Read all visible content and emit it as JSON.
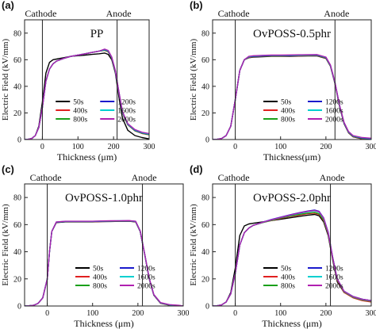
{
  "chart_data": [
    {
      "type": "line",
      "panel_label": "(a)",
      "title": "PP",
      "xlabel": "Thickness (μm)",
      "ylabel": "Electric Field (kV/mm)",
      "xlim": [
        -50,
        300
      ],
      "ylim": [
        0,
        90
      ],
      "xticks": [
        "0",
        "100",
        "200",
        "300"
      ],
      "yticks": [
        "0",
        "20",
        "40",
        "60",
        "80"
      ],
      "markers": [
        {
          "label": "Cathode",
          "x": 0
        },
        {
          "label": "Anode",
          "x": 210
        }
      ],
      "legend": "lower-center",
      "x": [
        -50,
        -40,
        -30,
        -20,
        -10,
        0,
        10,
        20,
        30,
        40,
        60,
        80,
        100,
        120,
        140,
        160,
        175,
        185,
        195,
        205,
        215,
        225,
        240,
        260,
        280,
        300
      ],
      "series": [
        {
          "name": "50s",
          "color": "#000000",
          "values": [
            0,
            0.2,
            0.8,
            3,
            10,
            28,
            50,
            58,
            60,
            60.5,
            61.5,
            62.5,
            63,
            63.5,
            64,
            64.5,
            65,
            64,
            60,
            50,
            32,
            16,
            7,
            3,
            1.5,
            0.5
          ]
        },
        {
          "name": "400s",
          "color": "#e02020",
          "values": [
            0,
            0.2,
            0.8,
            3,
            9,
            24,
            44,
            53,
            57,
            59,
            61,
            62.5,
            63.5,
            64.5,
            65.5,
            66.5,
            67,
            66,
            61,
            51,
            35,
            20,
            11,
            6.5,
            4.5,
            3.5
          ]
        },
        {
          "name": "800s",
          "color": "#1aa01a",
          "values": [
            0,
            0.2,
            0.8,
            3,
            9,
            24,
            44,
            53,
            57,
            59,
            61,
            62.5,
            63.5,
            64.5,
            65.5,
            66.5,
            67.2,
            66.2,
            61.2,
            51.2,
            35.2,
            20.2,
            11.2,
            6.7,
            4.7,
            3.7
          ]
        },
        {
          "name": "1200s",
          "color": "#1a1acc",
          "values": [
            0,
            0.2,
            0.8,
            3,
            9,
            24,
            44,
            53,
            57,
            59,
            61,
            62.5,
            63.5,
            64.5,
            65.5,
            66.5,
            67.5,
            66.5,
            61.5,
            51.5,
            35.5,
            20.5,
            11.5,
            7,
            5,
            4
          ]
        },
        {
          "name": "1600s",
          "color": "#00d0d0",
          "values": [
            0,
            0.2,
            0.8,
            3,
            9,
            24,
            44,
            53,
            57,
            59,
            61,
            62.5,
            63.5,
            64.5,
            65.5,
            66.5,
            67.7,
            66.7,
            61.7,
            51.7,
            35.7,
            20.7,
            11.7,
            7.2,
            5.2,
            4.2
          ]
        },
        {
          "name": "2000s",
          "color": "#b020b0",
          "values": [
            0,
            0.2,
            0.8,
            3,
            9,
            24,
            44,
            53,
            57,
            59,
            61,
            62.5,
            63.5,
            64.5,
            65.5,
            66.5,
            68,
            67,
            62,
            52,
            36,
            21,
            12,
            7.5,
            5.5,
            4.5
          ]
        }
      ]
    },
    {
      "type": "line",
      "panel_label": "(b)",
      "title": "OvPOSS-0.5phr",
      "xlabel": "Thickness(μm)",
      "ylabel": "Electric Field (kV/mm)",
      "xlim": [
        -50,
        300
      ],
      "ylim": [
        0,
        90
      ],
      "xticks": [
        "0",
        "100",
        "200",
        "300"
      ],
      "yticks": [
        "0",
        "20",
        "40",
        "60",
        "80"
      ],
      "markers": [
        {
          "label": "Cathode",
          "x": 0
        },
        {
          "label": "Anode",
          "x": 220
        }
      ],
      "legend": "lower-center",
      "x": [
        -50,
        -40,
        -30,
        -20,
        -10,
        0,
        10,
        20,
        30,
        40,
        60,
        80,
        100,
        120,
        140,
        160,
        180,
        200,
        210,
        220,
        230,
        240,
        250,
        260,
        280,
        300
      ],
      "series": [
        {
          "name": "50s",
          "color": "#000000",
          "values": [
            0,
            0.2,
            0.8,
            3,
            10,
            30,
            52,
            60,
            61.5,
            62,
            62.3,
            62.5,
            62.5,
            62.6,
            62.7,
            62.8,
            62.9,
            61,
            55,
            42,
            25,
            12,
            5,
            2,
            0.5,
            0
          ]
        },
        {
          "name": "400s",
          "color": "#e02020",
          "values": [
            0,
            0.2,
            0.8,
            3,
            10,
            30,
            52,
            60,
            61.7,
            62.2,
            62.5,
            62.7,
            62.7,
            62.8,
            62.9,
            63,
            63.1,
            61.2,
            55.2,
            42.2,
            25.2,
            12.2,
            5.2,
            2.2,
            0.7,
            0.2
          ]
        },
        {
          "name": "800s",
          "color": "#1aa01a",
          "values": [
            0,
            0.2,
            0.8,
            3,
            10,
            30,
            52,
            60,
            61.9,
            62.4,
            62.7,
            62.9,
            62.9,
            63,
            63.1,
            63.2,
            63.3,
            61.4,
            55.4,
            42.4,
            25.4,
            12.4,
            5.4,
            2.4,
            0.9,
            0.4
          ]
        },
        {
          "name": "1200s",
          "color": "#1a1acc",
          "values": [
            0,
            0.2,
            0.8,
            3,
            10,
            30,
            52,
            60,
            62.1,
            62.6,
            62.9,
            63.1,
            63.1,
            63.2,
            63.3,
            63.4,
            63.5,
            61.6,
            55.6,
            42.6,
            25.6,
            12.6,
            5.6,
            2.6,
            1.1,
            0.6
          ]
        },
        {
          "name": "1600s",
          "color": "#00d0d0",
          "values": [
            0,
            0.2,
            0.8,
            3,
            10,
            30,
            52,
            60,
            62.3,
            62.8,
            63.1,
            63.3,
            63.3,
            63.4,
            63.5,
            63.6,
            63.7,
            61.8,
            55.8,
            42.8,
            25.8,
            12.8,
            5.8,
            2.8,
            1.3,
            0.8
          ]
        },
        {
          "name": "2000s",
          "color": "#b020b0",
          "values": [
            0,
            0.2,
            0.8,
            3,
            10,
            30,
            52,
            60,
            62.5,
            63,
            63.3,
            63.5,
            63.5,
            63.6,
            63.7,
            63.8,
            63.9,
            62,
            56,
            43,
            26,
            13,
            6,
            3,
            1.5,
            1
          ]
        }
      ]
    },
    {
      "type": "line",
      "panel_label": "(c)",
      "title": "OvPOSS-1.0phr",
      "xlabel": "Thickness (μm)",
      "ylabel": "Electric Field (kV/mm)",
      "xlim": [
        -50,
        300
      ],
      "ylim": [
        0,
        90
      ],
      "xticks": [
        "0",
        "100",
        "200",
        "300"
      ],
      "yticks": [
        "0",
        "20",
        "40",
        "60",
        "80"
      ],
      "markers": [
        {
          "label": "Cathode",
          "x": 0
        },
        {
          "label": "Anode",
          "x": 210
        }
      ],
      "legend": "lower-center",
      "x": [
        -50,
        -40,
        -30,
        -20,
        -10,
        0,
        5,
        10,
        20,
        40,
        60,
        80,
        100,
        120,
        140,
        160,
        180,
        195,
        205,
        215,
        225,
        235,
        250,
        270,
        290,
        300
      ],
      "series": [
        {
          "name": "50s",
          "color": "#000000",
          "values": [
            0,
            0.2,
            0.5,
            2,
            6,
            20,
            40,
            55,
            61.5,
            62,
            62,
            62,
            62,
            62.2,
            62.3,
            62.4,
            62.5,
            62,
            55,
            38,
            20,
            8,
            2,
            0.5,
            0,
            0
          ]
        },
        {
          "name": "400s",
          "color": "#e02020",
          "values": [
            0,
            0.2,
            0.5,
            2,
            6,
            20,
            40,
            55,
            61.6,
            62.1,
            62.1,
            62.1,
            62.1,
            62.3,
            62.4,
            62.5,
            62.6,
            62.1,
            55.1,
            38.1,
            20.1,
            8.1,
            2.1,
            0.6,
            0.1,
            0
          ]
        },
        {
          "name": "800s",
          "color": "#1aa01a",
          "values": [
            0,
            0.2,
            0.5,
            2,
            6,
            20,
            40,
            55,
            61.7,
            62.2,
            62.2,
            62.2,
            62.2,
            62.4,
            62.5,
            62.6,
            62.7,
            62.2,
            55.2,
            38.2,
            20.2,
            8.2,
            2.2,
            0.7,
            0.2,
            0
          ]
        },
        {
          "name": "1200s",
          "color": "#1a1acc",
          "values": [
            0,
            0.2,
            0.5,
            2,
            6,
            20,
            40,
            55,
            61.8,
            62.3,
            62.3,
            62.3,
            62.3,
            62.5,
            62.6,
            62.7,
            62.8,
            62.3,
            55.3,
            38.3,
            20.3,
            8.3,
            2.3,
            0.8,
            0.3,
            0
          ]
        },
        {
          "name": "1600s",
          "color": "#00d0d0",
          "values": [
            0,
            0.2,
            0.5,
            2,
            6,
            20,
            40,
            55,
            61.9,
            62.4,
            62.4,
            62.4,
            62.4,
            62.6,
            62.7,
            62.8,
            62.9,
            62.4,
            55.4,
            38.4,
            20.4,
            8.4,
            2.4,
            0.9,
            0.4,
            0
          ]
        },
        {
          "name": "2000s",
          "color": "#b020b0",
          "values": [
            0,
            0.2,
            0.5,
            2,
            6,
            20,
            40,
            55,
            62,
            62.5,
            62.5,
            62.5,
            62.5,
            62.7,
            62.8,
            62.9,
            63,
            62.5,
            55.5,
            38.5,
            20.5,
            8.5,
            2.5,
            1,
            0.5,
            0
          ]
        }
      ]
    },
    {
      "type": "line",
      "panel_label": "(d)",
      "title": "OvPOSS-2.0phr",
      "xlabel": "Thickness (μm)",
      "ylabel": "Electric Field (kV/mm)",
      "xlim": [
        -50,
        300
      ],
      "ylim": [
        0,
        90
      ],
      "xticks": [
        "0",
        "100",
        "200",
        "300"
      ],
      "yticks": [
        "0",
        "20",
        "40",
        "60",
        "80"
      ],
      "markers": [
        {
          "label": "Cathode",
          "x": 0
        },
        {
          "label": "Anode",
          "x": 210
        }
      ],
      "legend": "lower-center",
      "x": [
        -50,
        -40,
        -30,
        -20,
        -10,
        0,
        10,
        20,
        30,
        40,
        60,
        80,
        100,
        120,
        140,
        160,
        175,
        185,
        195,
        205,
        215,
        225,
        240,
        260,
        280,
        300
      ],
      "series": [
        {
          "name": "50s",
          "color": "#000000",
          "values": [
            0,
            0.2,
            0.8,
            3,
            10,
            28,
            52,
            59,
            60.5,
            61,
            62,
            63,
            64,
            65,
            66,
            67,
            67.5,
            66.5,
            62,
            52,
            34,
            18,
            10,
            7,
            5,
            4
          ]
        },
        {
          "name": "400s",
          "color": "#e02020",
          "values": [
            0,
            0.2,
            0.8,
            3,
            9,
            24,
            45,
            54,
            57.5,
            59.5,
            61.5,
            63,
            64.5,
            66,
            67,
            68,
            68.5,
            67.5,
            63,
            53,
            35,
            19,
            10,
            6,
            4,
            3
          ]
        },
        {
          "name": "800s",
          "color": "#1aa01a",
          "values": [
            0,
            0.2,
            0.8,
            3,
            9,
            24,
            45,
            54,
            57.5,
            59.5,
            61.5,
            63.2,
            64.8,
            66.3,
            67.5,
            68.5,
            69,
            68,
            63.5,
            53.5,
            35.5,
            19.5,
            10.5,
            6.5,
            4.5,
            3.5
          ]
        },
        {
          "name": "1200s",
          "color": "#1a1acc",
          "values": [
            0,
            0.2,
            0.8,
            3,
            9,
            24,
            45,
            54,
            57.5,
            59.5,
            61.8,
            63.8,
            65.5,
            67.2,
            68.7,
            70,
            70.8,
            69.8,
            65,
            54.5,
            36,
            20,
            11,
            7,
            5,
            4
          ]
        },
        {
          "name": "1600s",
          "color": "#00d0d0",
          "values": [
            0,
            0.2,
            0.8,
            3,
            9,
            24,
            45,
            54,
            57.5,
            59.5,
            61.6,
            63.5,
            65.2,
            66.8,
            68.2,
            69.5,
            70.2,
            69.2,
            64.5,
            54,
            35.8,
            19.8,
            10.8,
            6.8,
            4.8,
            3.8
          ]
        },
        {
          "name": "2000s",
          "color": "#b020b0",
          "values": [
            0,
            0.2,
            0.8,
            3,
            9,
            24,
            45,
            54,
            57.5,
            59.5,
            61.7,
            63.6,
            65.3,
            67,
            68.5,
            69.8,
            70.5,
            69.5,
            64.8,
            54.2,
            35.9,
            19.9,
            10.9,
            6.9,
            4.9,
            3.9
          ]
        }
      ]
    }
  ]
}
